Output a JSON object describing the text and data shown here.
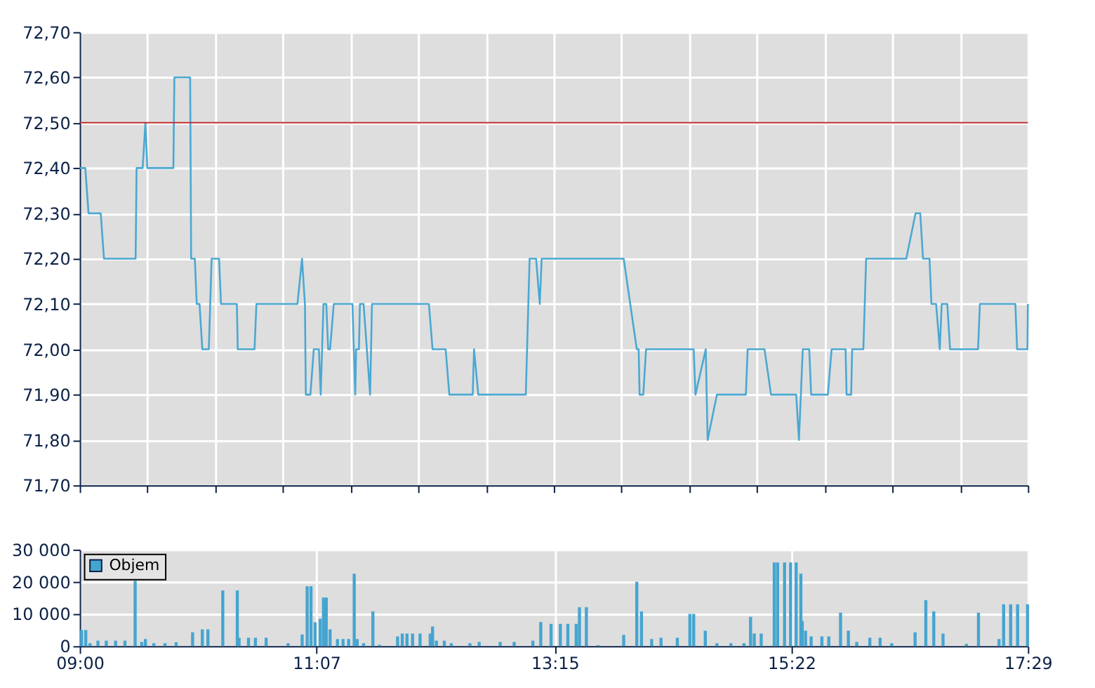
{
  "chart_data": [
    {
      "type": "line",
      "ylim": [
        71.7,
        72.7
      ],
      "yticks": [
        {
          "value": 71.7,
          "label": "71,70"
        },
        {
          "value": 71.8,
          "label": "71,80"
        },
        {
          "value": 71.9,
          "label": "71,90"
        },
        {
          "value": 72.0,
          "label": "72,00"
        },
        {
          "value": 72.1,
          "label": "72,10"
        },
        {
          "value": 72.2,
          "label": "72,20"
        },
        {
          "value": 72.3,
          "label": "72,30"
        },
        {
          "value": 72.4,
          "label": "72,40"
        },
        {
          "value": 72.5,
          "label": "72,50"
        },
        {
          "value": 72.6,
          "label": "72,60"
        },
        {
          "value": 72.7,
          "label": "72,70"
        }
      ],
      "xlim": [
        9.0,
        17.483
      ],
      "xticks": [
        {
          "value": 9.0,
          "label": null
        },
        {
          "value": 9.606,
          "label": null
        },
        {
          "value": 10.212,
          "label": null
        },
        {
          "value": 10.818,
          "label": null
        },
        {
          "value": 11.424,
          "label": null
        },
        {
          "value": 12.03,
          "label": null
        },
        {
          "value": 12.636,
          "label": null
        },
        {
          "value": 13.242,
          "label": null
        },
        {
          "value": 13.848,
          "label": null
        },
        {
          "value": 14.454,
          "label": null
        },
        {
          "value": 15.06,
          "label": null
        },
        {
          "value": 15.665,
          "label": null
        },
        {
          "value": 16.271,
          "label": null
        },
        {
          "value": 16.877,
          "label": null
        },
        {
          "value": 17.483,
          "label": null
        }
      ],
      "tick_labels": "y",
      "grid": true,
      "marker": "none",
      "line_style": "solid",
      "ref_lines": [
        {
          "axis": "y",
          "value": 72.5,
          "label": null,
          "color": "#c03030"
        }
      ],
      "series": [
        {
          "color": "#4aa8d2",
          "x": [
            9.0,
            9.05,
            9.079,
            9.188,
            9.217,
            9.5,
            9.509,
            9.563,
            9.588,
            9.605,
            9.838,
            9.847,
            9.988,
            9.997,
            10.03,
            10.047,
            10.072,
            10.097,
            10.155,
            10.18,
            10.247,
            10.264,
            10.406,
            10.414,
            10.564,
            10.581,
            10.948,
            10.989,
            11.015,
            11.023,
            11.064,
            11.094,
            11.14,
            11.156,
            11.181,
            11.206,
            11.223,
            11.24,
            11.273,
            11.44,
            11.465,
            11.473,
            11.498,
            11.507,
            11.54,
            11.598,
            11.615,
            12.124,
            12.157,
            12.274,
            12.307,
            12.516,
            12.528,
            12.566,
            12.991,
            13.025,
            13.083,
            13.116,
            13.133,
            13.867,
            13.984,
            14.001,
            14.009,
            14.042,
            14.067,
            14.493,
            14.509,
            14.601,
            14.618,
            14.701,
            14.96,
            14.976,
            15.127,
            15.185,
            15.41,
            15.435,
            15.469,
            15.527,
            15.544,
            15.694,
            15.727,
            15.852,
            15.861,
            15.902,
            15.911,
            16.011,
            16.036,
            16.395,
            16.478,
            16.52,
            16.545,
            16.603,
            16.62,
            16.662,
            16.695,
            16.712,
            16.762,
            16.787,
            17.037,
            17.054,
            17.371,
            17.387,
            17.479,
            17.483
          ],
          "values": [
            72.4,
            72.4,
            72.3,
            72.3,
            72.2,
            72.2,
            72.4,
            72.4,
            72.5,
            72.4,
            72.4,
            72.6,
            72.6,
            72.2,
            72.2,
            72.1,
            72.1,
            72.0,
            72.0,
            72.2,
            72.2,
            72.1,
            72.1,
            72.0,
            72.0,
            72.1,
            72.1,
            72.2,
            72.1,
            71.9,
            71.9,
            72.0,
            72.0,
            71.9,
            72.1,
            72.1,
            72.0,
            72.0,
            72.1,
            72.1,
            71.9,
            72.0,
            72.0,
            72.1,
            72.1,
            71.9,
            72.1,
            72.1,
            72.0,
            72.0,
            71.9,
            71.9,
            72.0,
            71.9,
            71.9,
            72.2,
            72.2,
            72.1,
            72.2,
            72.2,
            72.0,
            72.0,
            71.9,
            71.9,
            72.0,
            72.0,
            71.9,
            72.0,
            71.8,
            71.9,
            71.9,
            72.0,
            72.0,
            71.9,
            71.9,
            71.8,
            72.0,
            72.0,
            71.9,
            71.9,
            72.0,
            72.0,
            71.9,
            71.9,
            72.0,
            72.0,
            72.2,
            72.2,
            72.3,
            72.3,
            72.2,
            72.2,
            72.1,
            72.1,
            72.0,
            72.1,
            72.1,
            72.0,
            72.0,
            72.1,
            72.1,
            72.0,
            72.0,
            72.1
          ]
        }
      ]
    },
    {
      "type": "bar",
      "ylim": [
        0,
        30000
      ],
      "yticks": [
        {
          "value": 0,
          "label": "0"
        },
        {
          "value": 10000,
          "label": "10 000"
        },
        {
          "value": 20000,
          "label": "20 000"
        },
        {
          "value": 30000,
          "label": "30 000"
        }
      ],
      "xlim": [
        9.0,
        17.483
      ],
      "xticks": [
        {
          "value": 9.0,
          "label": "09:00"
        },
        {
          "value": 11.117,
          "label": "11:07"
        },
        {
          "value": 13.25,
          "label": "13:15"
        },
        {
          "value": 15.367,
          "label": "15:22"
        },
        {
          "value": 17.483,
          "label": "17:29"
        }
      ],
      "grid": true,
      "legend": "top left",
      "series": [
        {
          "name": "Objem",
          "color": "#45a5d0",
          "x": [
            9.017,
            9.054,
            9.092,
            9.163,
            9.238,
            9.321,
            9.405,
            9.496,
            9.555,
            9.588,
            9.663,
            9.763,
            9.863,
            10.01,
            10.097,
            10.147,
            10.28,
            10.41,
            10.426,
            10.51,
            10.572,
            10.668,
            10.864,
            10.99,
            11.035,
            11.069,
            11.106,
            11.152,
            11.181,
            11.206,
            11.24,
            11.306,
            11.356,
            11.406,
            11.456,
            11.482,
            11.54,
            11.623,
            11.682,
            11.844,
            11.886,
            11.928,
            11.978,
            12.045,
            12.136,
            12.157,
            12.191,
            12.262,
            12.324,
            12.491,
            12.574,
            12.762,
            12.887,
            13.054,
            13.125,
            13.217,
            13.3,
            13.367,
            13.442,
            13.471,
            13.533,
            13.638,
            13.867,
            13.984,
            14.026,
            14.117,
            14.201,
            14.347,
            14.459,
            14.493,
            14.597,
            14.701,
            14.826,
            14.943,
            15.002,
            15.035,
            15.097,
            15.214,
            15.244,
            15.306,
            15.36,
            15.41,
            15.452,
            15.464,
            15.494,
            15.544,
            15.64,
            15.702,
            15.807,
            15.877,
            15.952,
            16.069,
            16.161,
            16.265,
            16.474,
            16.57,
            16.641,
            16.724,
            16.933,
            17.041,
            17.225,
            17.266,
            17.329,
            17.391,
            17.48
          ],
          "values": [
            5000,
            5000,
            900,
            1700,
            1700,
            1700,
            1700,
            20300,
            1300,
            2200,
            900,
            900,
            1200,
            4300,
            5200,
            5200,
            17300,
            17300,
            2600,
            2600,
            2600,
            2600,
            900,
            3600,
            18600,
            18600,
            7400,
            8500,
            15100,
            15100,
            5200,
            2200,
            2200,
            2200,
            22500,
            2200,
            900,
            10800,
            400,
            3000,
            3900,
            3900,
            3900,
            3900,
            3900,
            6100,
            1700,
            1700,
            900,
            900,
            1300,
            1300,
            1300,
            1700,
            7500,
            6900,
            6900,
            6900,
            6900,
            12100,
            12100,
            300,
            3500,
            20000,
            10800,
            2200,
            2600,
            2600,
            10000,
            10000,
            4800,
            900,
            900,
            900,
            9100,
            3900,
            3900,
            26000,
            26000,
            26000,
            26000,
            26000,
            22500,
            7800,
            4800,
            3000,
            3000,
            3000,
            10400,
            4800,
            1300,
            2600,
            2600,
            900,
            4300,
            14300,
            10800,
            3900,
            700,
            10400,
            2200,
            13000,
            13000,
            13000,
            13000
          ]
        }
      ]
    }
  ]
}
